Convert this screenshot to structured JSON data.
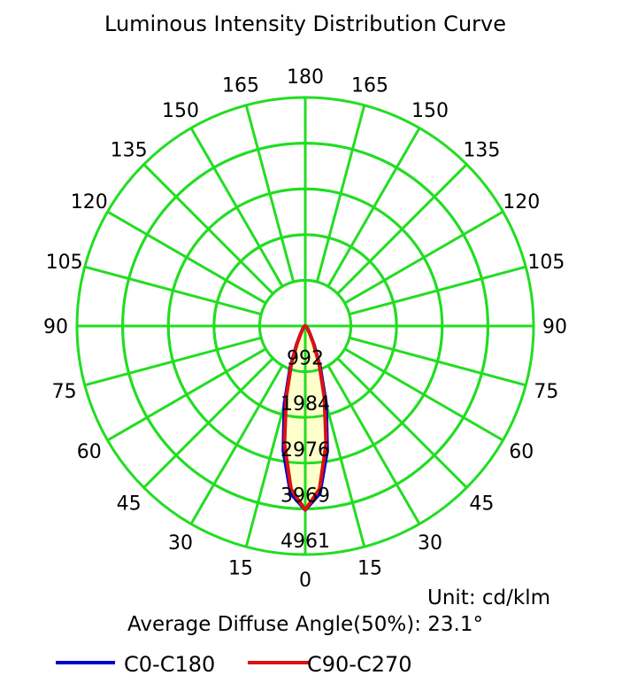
{
  "chart_data": {
    "type": "polar",
    "title": "Luminous Intensity Distribution Curve",
    "unit_label": "Unit: cd/klm",
    "angle_note": "Average Diffuse Angle(50%): 23.1°",
    "ring_values": [
      992,
      1984,
      2976,
      3969,
      4961
    ],
    "ring_labels": [
      "992",
      "1984",
      "2976",
      "3969",
      "4961"
    ],
    "rmax": 4961,
    "angle_ticks_left": [
      "0",
      "15",
      "30",
      "45",
      "60",
      "75",
      "90",
      "105",
      "120",
      "135",
      "150",
      "165",
      "180"
    ],
    "angle_ticks_right": [
      "15",
      "30",
      "45",
      "60",
      "75",
      "90",
      "105",
      "120",
      "135",
      "150",
      "165"
    ],
    "angle_tick_values": [
      0,
      15,
      30,
      45,
      60,
      75,
      90,
      105,
      120,
      135,
      150,
      165,
      180
    ],
    "angles": [
      0,
      5,
      10,
      15,
      20,
      25,
      30,
      40,
      50,
      60,
      70,
      80,
      90
    ],
    "series": [
      {
        "name": "C0-C180",
        "color": "#0000cc",
        "values": [
          3990,
          3650,
          2750,
          1750,
          950,
          450,
          220,
          90,
          40,
          20,
          10,
          5,
          0
        ]
      },
      {
        "name": "C90-C270",
        "color": "#dd1111",
        "values": [
          3990,
          3550,
          2600,
          1600,
          880,
          420,
          200,
          80,
          40,
          20,
          10,
          5,
          0
        ]
      }
    ],
    "grid_color": "#22dd22",
    "fill_color": "#ffffcc",
    "legend_position": "bottom-left"
  }
}
